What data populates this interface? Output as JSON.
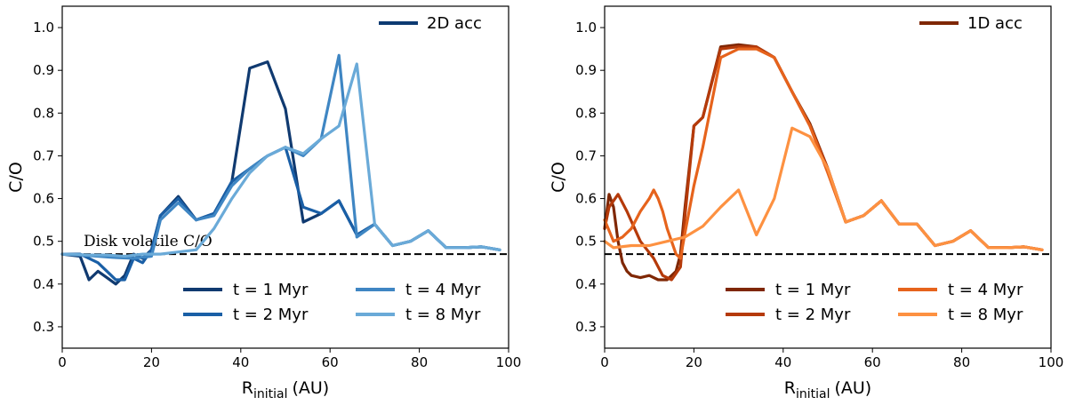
{
  "chart_data": [
    {
      "type": "line",
      "xlabel_main": "R",
      "xlabel_sub": "initial",
      "xlabel_unit": "(AU)",
      "ylabel": "C/O",
      "xlim": [
        0,
        100
      ],
      "ylim": [
        0.25,
        1.05
      ],
      "xticks": [
        "0",
        "20",
        "40",
        "60",
        "80",
        "100"
      ],
      "yticks": [
        "0.3",
        "0.4",
        "0.5",
        "0.6",
        "0.7",
        "0.8",
        "0.9",
        "1.0"
      ],
      "title_legend": {
        "name": "2D acc",
        "color": "#0d3b72"
      },
      "reference_line": {
        "y": 0.47,
        "style": "dashed",
        "label": "Disk volatile C/O"
      },
      "legend": {
        "placement": "lower-right",
        "columns": 2
      },
      "series": [
        {
          "name": "t = 1 Myr",
          "color": "#103a70",
          "x": [
            0,
            4,
            6,
            8,
            10,
            12,
            14,
            16,
            18,
            20,
            22,
            26,
            30,
            34,
            38,
            42,
            46,
            50,
            54,
            58,
            62,
            66,
            70,
            74,
            78,
            82,
            86,
            90,
            94,
            98
          ],
          "y": [
            0.47,
            0.465,
            0.41,
            0.43,
            0.415,
            0.4,
            0.42,
            0.47,
            0.46,
            0.48,
            0.56,
            0.605,
            0.55,
            0.565,
            0.64,
            0.905,
            0.92,
            0.81,
            0.545,
            0.565,
            0.595,
            0.515,
            0.54,
            0.49,
            0.5,
            0.525,
            0.485,
            0.485,
            0.487,
            0.48
          ]
        },
        {
          "name": "t = 2 Myr",
          "color": "#1a5fa6",
          "x": [
            0,
            4,
            8,
            12,
            14,
            16,
            18,
            20,
            22,
            26,
            30,
            34,
            38,
            42,
            46,
            50,
            54,
            58,
            62,
            66,
            70,
            74,
            78,
            82,
            86,
            90,
            94,
            98
          ],
          "y": [
            0.47,
            0.47,
            0.45,
            0.41,
            0.41,
            0.46,
            0.45,
            0.48,
            0.56,
            0.6,
            0.55,
            0.565,
            0.64,
            0.67,
            0.7,
            0.72,
            0.58,
            0.565,
            0.595,
            0.515,
            0.54,
            0.49,
            0.5,
            0.525,
            0.485,
            0.485,
            0.487,
            0.48
          ]
        },
        {
          "name": "t = 4 Myr",
          "color": "#3f86c3",
          "x": [
            0,
            4,
            8,
            12,
            16,
            20,
            22,
            26,
            30,
            34,
            38,
            42,
            46,
            50,
            54,
            58,
            62,
            66,
            70,
            74,
            78,
            82,
            86,
            90,
            94,
            98
          ],
          "y": [
            0.47,
            0.468,
            0.465,
            0.462,
            0.46,
            0.465,
            0.55,
            0.59,
            0.55,
            0.56,
            0.63,
            0.67,
            0.7,
            0.72,
            0.7,
            0.74,
            0.935,
            0.51,
            0.54,
            0.49,
            0.5,
            0.525,
            0.485,
            0.485,
            0.487,
            0.48
          ]
        },
        {
          "name": "t = 8 Myr",
          "color": "#6aaad8",
          "x": [
            0,
            6,
            10,
            14,
            18,
            22,
            26,
            30,
            34,
            38,
            42,
            46,
            50,
            54,
            58,
            62,
            66,
            70,
            74,
            78,
            82,
            86,
            90,
            94,
            98
          ],
          "y": [
            0.47,
            0.468,
            0.468,
            0.465,
            0.47,
            0.47,
            0.475,
            0.48,
            0.53,
            0.6,
            0.66,
            0.7,
            0.72,
            0.705,
            0.74,
            0.77,
            0.915,
            0.54,
            0.49,
            0.5,
            0.525,
            0.485,
            0.485,
            0.487,
            0.48
          ]
        }
      ]
    },
    {
      "type": "line",
      "xlabel_main": "R",
      "xlabel_sub": "initial",
      "xlabel_unit": "(AU)",
      "ylabel": "C/O",
      "xlim": [
        0,
        100
      ],
      "ylim": [
        0.25,
        1.05
      ],
      "xticks": [
        "0",
        "20",
        "40",
        "60",
        "80",
        "100"
      ],
      "yticks": [
        "0.3",
        "0.4",
        "0.5",
        "0.6",
        "0.7",
        "0.8",
        "0.9",
        "1.0"
      ],
      "title_legend": {
        "name": "1D acc",
        "color": "#7f2704"
      },
      "reference_line": {
        "y": 0.47,
        "style": "dashed",
        "label": ""
      },
      "legend": {
        "placement": "lower-right",
        "columns": 2
      },
      "series": [
        {
          "name": "t = 1 Myr",
          "color": "#7f2704",
          "x": [
            0,
            1,
            2,
            3,
            4,
            5,
            6,
            8,
            10,
            12,
            14,
            16,
            17,
            18,
            20,
            22,
            26,
            30,
            34,
            38,
            42,
            46,
            50,
            54,
            58,
            62,
            66,
            70,
            74,
            78,
            82,
            86,
            90,
            94,
            98
          ],
          "y": [
            0.53,
            0.61,
            0.58,
            0.5,
            0.45,
            0.43,
            0.42,
            0.415,
            0.42,
            0.41,
            0.41,
            0.43,
            0.47,
            0.58,
            0.77,
            0.79,
            0.955,
            0.96,
            0.955,
            0.93,
            0.85,
            0.775,
            0.67,
            0.545,
            0.56,
            0.595,
            0.54,
            0.54,
            0.49,
            0.5,
            0.525,
            0.485,
            0.485,
            0.487,
            0.48
          ]
        },
        {
          "name": "t = 2 Myr",
          "color": "#b53a0a",
          "x": [
            0,
            1,
            3,
            5,
            8,
            11,
            13,
            15,
            17,
            18,
            20,
            22,
            26,
            30,
            34,
            38,
            42,
            46,
            50,
            54,
            58,
            62,
            66,
            70,
            74,
            78,
            82,
            86,
            90,
            94,
            98
          ],
          "y": [
            0.53,
            0.58,
            0.61,
            0.57,
            0.5,
            0.46,
            0.42,
            0.41,
            0.44,
            0.56,
            0.77,
            0.79,
            0.95,
            0.955,
            0.955,
            0.93,
            0.85,
            0.77,
            0.67,
            0.545,
            0.56,
            0.595,
            0.54,
            0.54,
            0.49,
            0.5,
            0.525,
            0.485,
            0.485,
            0.487,
            0.48
          ]
        },
        {
          "name": "t = 4 Myr",
          "color": "#e6631c",
          "x": [
            0,
            2,
            4,
            6,
            8,
            10,
            11,
            12,
            13,
            14,
            15,
            16,
            17,
            18,
            20,
            22,
            26,
            30,
            34,
            38,
            42,
            46,
            50,
            54,
            58,
            62,
            66,
            70,
            74,
            78,
            82,
            86,
            90,
            94,
            98
          ],
          "y": [
            0.55,
            0.5,
            0.51,
            0.53,
            0.57,
            0.6,
            0.62,
            0.6,
            0.57,
            0.53,
            0.5,
            0.47,
            0.46,
            0.52,
            0.63,
            0.72,
            0.93,
            0.95,
            0.95,
            0.93,
            0.85,
            0.77,
            0.66,
            0.545,
            0.56,
            0.595,
            0.54,
            0.54,
            0.49,
            0.5,
            0.525,
            0.485,
            0.485,
            0.487,
            0.48
          ]
        },
        {
          "name": "t = 8 Myr",
          "color": "#fd9141",
          "x": [
            0,
            2,
            6,
            10,
            14,
            18,
            22,
            26,
            30,
            34,
            38,
            42,
            46,
            50,
            54,
            58,
            62,
            66,
            70,
            74,
            78,
            82,
            86,
            90,
            94,
            98
          ],
          "y": [
            0.5,
            0.485,
            0.49,
            0.49,
            0.5,
            0.51,
            0.535,
            0.58,
            0.62,
            0.515,
            0.6,
            0.765,
            0.745,
            0.67,
            0.545,
            0.56,
            0.595,
            0.54,
            0.54,
            0.49,
            0.5,
            0.525,
            0.485,
            0.485,
            0.487,
            0.48
          ]
        }
      ]
    }
  ]
}
